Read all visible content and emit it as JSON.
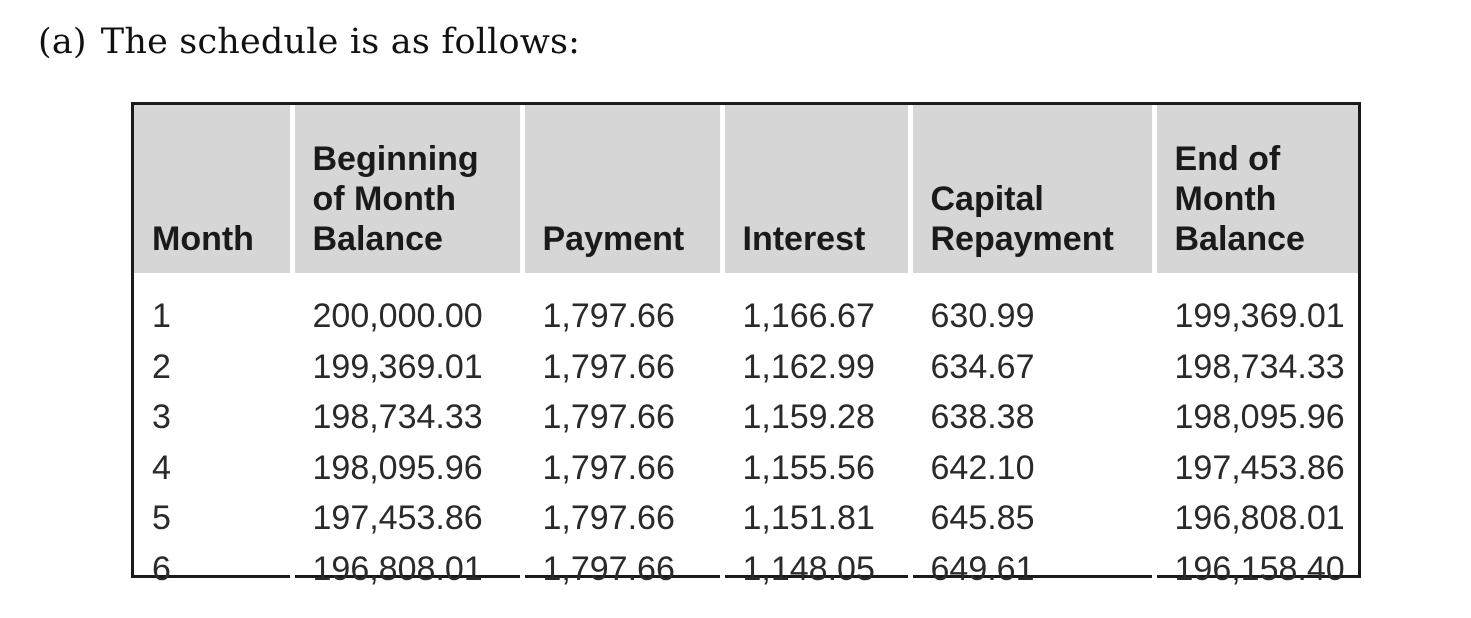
{
  "intro": {
    "label": "(a)",
    "text": "The schedule is as follows:"
  },
  "schedule_table": {
    "headers": [
      "Month",
      "Beginning\nof Month\nBalance",
      "Payment",
      "Interest",
      "Capital\nRepayment",
      "End of\nMonth\nBalance"
    ],
    "rows": [
      [
        "1",
        "200,000.00",
        "1,797.66",
        "1,166.67",
        "630.99",
        "199,369.01"
      ],
      [
        "2",
        "199,369.01",
        "1,797.66",
        "1,162.99",
        "634.67",
        "198,734.33"
      ],
      [
        "3",
        "198,734.33",
        "1,797.66",
        "1,159.28",
        "638.38",
        "198,095.96"
      ],
      [
        "4",
        "198,095.96",
        "1,797.66",
        "1,155.56",
        "642.10",
        "197,453.86"
      ],
      [
        "5",
        "197,453.86",
        "1,797.66",
        "1,151.81",
        "645.85",
        "196,808.01"
      ],
      [
        "6",
        "196,808.01",
        "1,797.66",
        "1,148.05",
        "649.61",
        "196,158.40"
      ]
    ]
  },
  "colors": {
    "header_background": "#d6d6d6",
    "border": "#1a1a1a"
  }
}
